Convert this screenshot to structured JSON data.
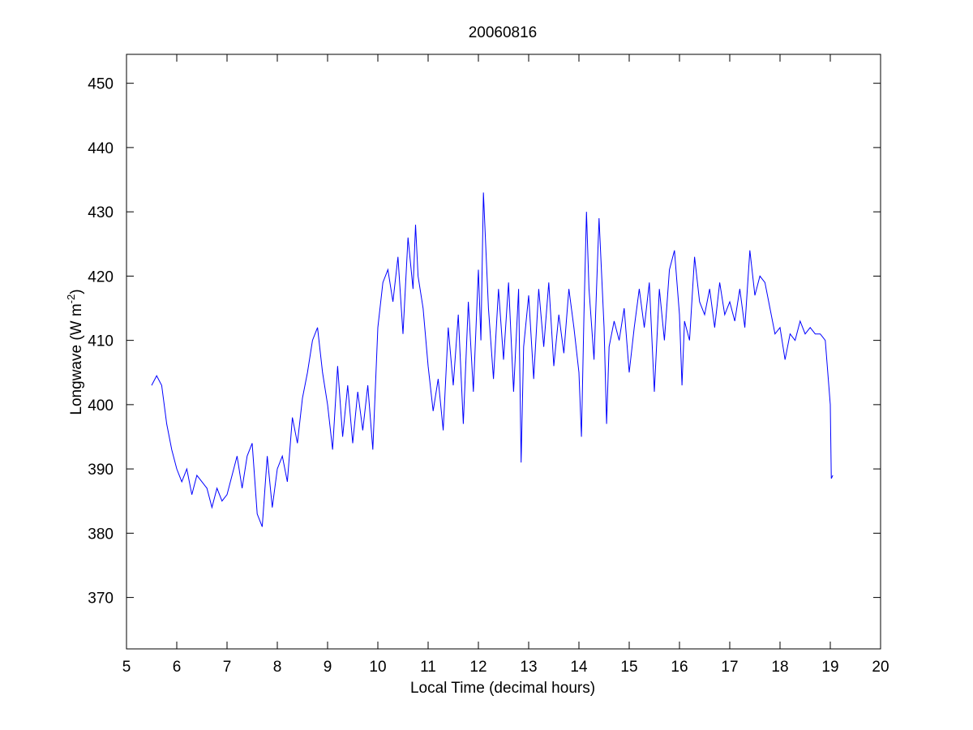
{
  "chart_data": {
    "type": "line",
    "title": "20060816",
    "xlabel": "Local Time (decimal hours)",
    "ylabel": [
      "Longwave (W m",
      "-2",
      ")"
    ],
    "xlim": [
      5,
      20
    ],
    "xticks": [
      5,
      6,
      7,
      8,
      9,
      10,
      11,
      12,
      13,
      14,
      15,
      16,
      17,
      18,
      19,
      20
    ],
    "ylim": [
      362,
      454.5
    ],
    "yticks": [
      370,
      380,
      390,
      400,
      410,
      420,
      430,
      440,
      450
    ],
    "grid": false,
    "series": [
      {
        "color": "#0000ff",
        "x": [
          5.5,
          5.6,
          5.7,
          5.8,
          5.9,
          6.0,
          6.1,
          6.2,
          6.3,
          6.4,
          6.5,
          6.6,
          6.7,
          6.8,
          6.9,
          7.0,
          7.1,
          7.2,
          7.3,
          7.4,
          7.5,
          7.6,
          7.7,
          7.8,
          7.9,
          8.0,
          8.1,
          8.2,
          8.3,
          8.4,
          8.5,
          8.6,
          8.7,
          8.8,
          8.9,
          9.0,
          9.1,
          9.2,
          9.3,
          9.4,
          9.5,
          9.6,
          9.7,
          9.8,
          9.9,
          10.0,
          10.1,
          10.2,
          10.3,
          10.4,
          10.5,
          10.6,
          10.7,
          10.75,
          10.8,
          10.9,
          11.0,
          11.1,
          11.2,
          11.3,
          11.4,
          11.5,
          11.6,
          11.7,
          11.8,
          11.9,
          12.0,
          12.05,
          12.1,
          12.2,
          12.3,
          12.4,
          12.5,
          12.6,
          12.7,
          12.8,
          12.85,
          12.9,
          13.0,
          13.1,
          13.2,
          13.3,
          13.4,
          13.5,
          13.6,
          13.7,
          13.8,
          13.9,
          14.0,
          14.05,
          14.1,
          14.15,
          14.2,
          14.3,
          14.4,
          14.5,
          14.55,
          14.6,
          14.7,
          14.8,
          14.9,
          15.0,
          15.1,
          15.2,
          15.3,
          15.4,
          15.5,
          15.6,
          15.7,
          15.8,
          15.9,
          16.0,
          16.05,
          16.1,
          16.2,
          16.3,
          16.4,
          16.5,
          16.6,
          16.7,
          16.8,
          16.9,
          17.0,
          17.1,
          17.2,
          17.3,
          17.4,
          17.5,
          17.6,
          17.7,
          17.8,
          17.9,
          18.0,
          18.1,
          18.2,
          18.3,
          18.4,
          18.5,
          18.6,
          18.7,
          18.8,
          18.9,
          19.0,
          19.02,
          19.05
        ],
        "values": [
          403,
          404.5,
          403,
          397,
          393,
          390,
          388,
          390,
          386,
          389,
          388,
          387,
          384,
          387,
          385,
          386,
          389,
          392,
          387,
          392,
          394,
          383,
          381,
          392,
          384,
          390,
          392,
          388,
          398,
          394,
          401,
          405,
          410,
          412,
          405,
          400,
          393,
          406,
          395,
          403,
          394,
          402,
          396,
          403,
          393,
          412,
          419,
          421,
          416,
          423,
          411,
          426,
          418,
          428,
          420,
          415,
          406,
          399,
          404,
          396,
          412,
          403,
          414,
          397,
          416,
          402,
          421,
          410,
          433,
          415,
          404,
          418,
          407,
          419,
          402,
          418,
          391,
          409,
          417,
          404,
          418,
          409,
          419,
          406,
          414,
          408,
          418,
          412,
          405,
          395,
          414,
          430,
          418,
          407,
          429,
          412,
          397,
          409,
          413,
          410,
          415,
          405,
          412,
          418,
          412,
          419,
          402,
          418,
          410,
          421,
          424,
          414,
          403,
          413,
          410,
          423,
          416,
          414,
          418,
          412,
          419,
          414,
          416,
          413,
          418,
          412,
          424,
          417,
          420,
          419,
          415,
          411,
          412,
          407,
          411,
          410,
          413,
          411,
          412,
          411,
          411,
          410,
          400,
          388.5,
          389
        ]
      }
    ]
  }
}
